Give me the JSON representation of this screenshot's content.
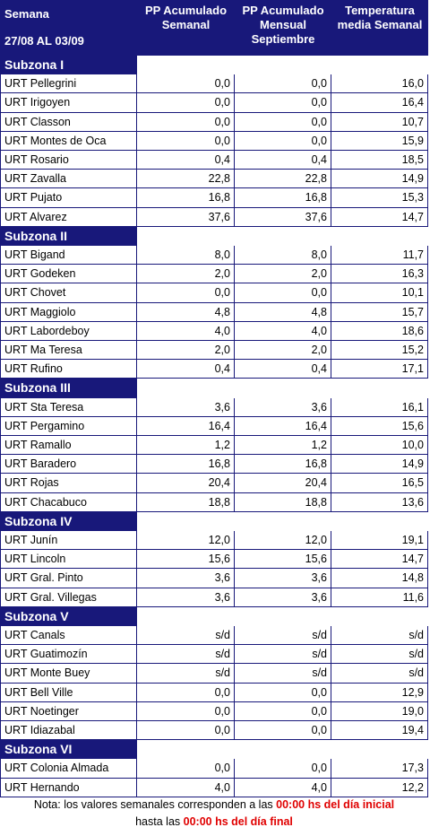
{
  "header": {
    "title": "Semana",
    "dates": "27/08 AL 03/09",
    "columns": [
      "PP Acumulado Semanal",
      "PP Acumulado Mensual Septiembre",
      "Temperatura media Semanal"
    ]
  },
  "subzones": [
    {
      "name": "Subzona I",
      "rows": [
        [
          "URT Pellegrini",
          "0,0",
          "0,0",
          "16,0"
        ],
        [
          "URT Irigoyen",
          "0,0",
          "0,0",
          "16,4"
        ],
        [
          "URT Classon",
          "0,0",
          "0,0",
          "10,7"
        ],
        [
          "URT Montes de Oca",
          "0,0",
          "0,0",
          "15,9"
        ],
        [
          "URT Rosario",
          "0,4",
          "0,4",
          "18,5"
        ],
        [
          "URT Zavalla",
          "22,8",
          "22,8",
          "14,9"
        ],
        [
          "URT Pujato",
          "16,8",
          "16,8",
          "15,3"
        ],
        [
          "URT Alvarez",
          "37,6",
          "37,6",
          "14,7"
        ]
      ]
    },
    {
      "name": "Subzona II",
      "rows": [
        [
          "URT Bigand",
          "8,0",
          "8,0",
          "11,7"
        ],
        [
          "URT Godeken",
          "2,0",
          "2,0",
          "16,3"
        ],
        [
          "URT Chovet",
          "0,0",
          "0,0",
          "10,1"
        ],
        [
          "URT Maggiolo",
          "4,8",
          "4,8",
          "15,7"
        ],
        [
          "URT Labordeboy",
          "4,0",
          "4,0",
          "18,6"
        ],
        [
          "URT Ma Teresa",
          "2,0",
          "2,0",
          "15,2"
        ],
        [
          "URT Rufino",
          "0,4",
          "0,4",
          "17,1"
        ]
      ]
    },
    {
      "name": "Subzona III",
      "rows": [
        [
          "URT Sta Teresa",
          "3,6",
          "3,6",
          "16,1"
        ],
        [
          "URT Pergamino",
          "16,4",
          "16,4",
          "15,6"
        ],
        [
          "URT Ramallo",
          "1,2",
          "1,2",
          "10,0"
        ],
        [
          "URT Baradero",
          "16,8",
          "16,8",
          "14,9"
        ],
        [
          "URT Rojas",
          "20,4",
          "20,4",
          "16,5"
        ],
        [
          "URT Chacabuco",
          "18,8",
          "18,8",
          "13,6"
        ]
      ]
    },
    {
      "name": "Subzona IV",
      "rows": [
        [
          "URT Junín",
          "12,0",
          "12,0",
          "19,1"
        ],
        [
          "URT Lincoln",
          "15,6",
          "15,6",
          "14,7"
        ],
        [
          "URT Gral. Pinto",
          "3,6",
          "3,6",
          "14,8"
        ],
        [
          "URT Gral. Villegas",
          "3,6",
          "3,6",
          "11,6"
        ]
      ]
    },
    {
      "name": "Subzona V",
      "rows": [
        [
          "URT Canals",
          "s/d",
          "s/d",
          "s/d"
        ],
        [
          "URT Guatimozín",
          "s/d",
          "s/d",
          "s/d"
        ],
        [
          "URT Monte Buey",
          "s/d",
          "s/d",
          "s/d"
        ],
        [
          "URT Bell Ville",
          "0,0",
          "0,0",
          "12,9"
        ],
        [
          "URT Noetinger",
          "0,0",
          "0,0",
          "19,0"
        ],
        [
          "URT Idiazabal",
          "0,0",
          "0,0",
          "19,4"
        ]
      ]
    },
    {
      "name": "Subzona VI",
      "rows": [
        [
          "URT Colonia Almada",
          "0,0",
          "0,0",
          "17,3"
        ],
        [
          "URT Hernando",
          "4,0",
          "4,0",
          "12,2"
        ]
      ]
    }
  ],
  "note": {
    "line1": "Nota: los valores semanales corresponden a las ",
    "line1_highlight": "00:00 hs del día inicial",
    "line2": "hasta las ",
    "line2_highlight": "00:00 hs del día final"
  }
}
